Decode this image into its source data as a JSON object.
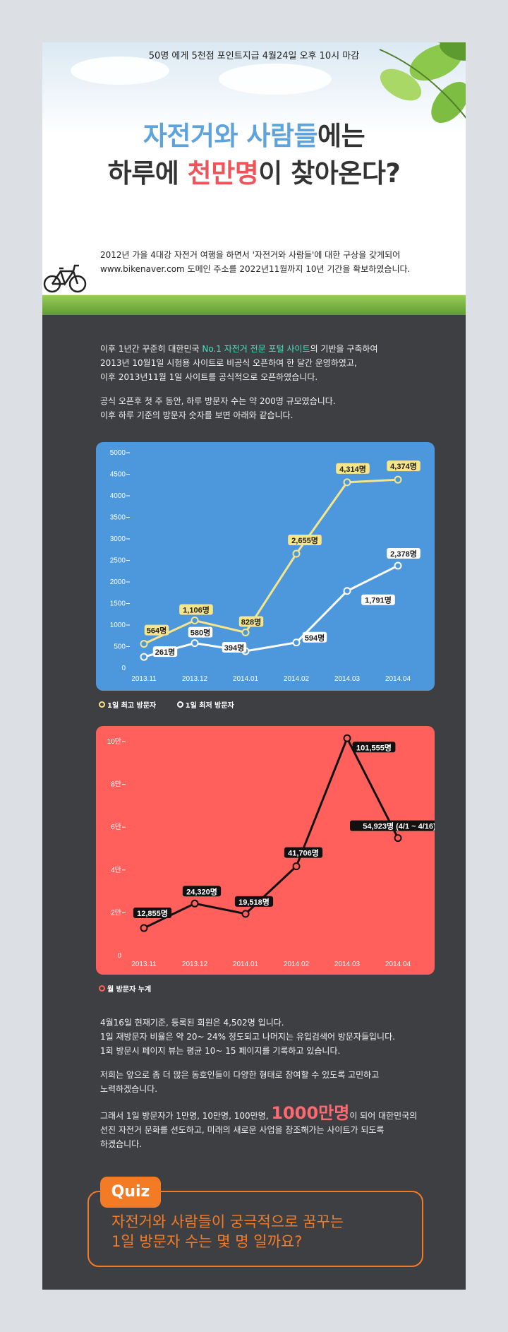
{
  "hero": {
    "promo": "50명 에게 5천점 포인트지급 4월24일 오후 10시 마감",
    "title_line1_a": "자전거와 사람들",
    "title_line1_b": "에는",
    "title_line2_a": "하루에 ",
    "title_line2_b": "천만명",
    "title_line2_c": "이 찾아온다?",
    "intro": [
      "2012년 가을  4대강 자전거 여행을 하면서 '자전거와 사람들'에 대한 구상을 갖게되어",
      "www.bikenaver.com 도메인 주소를  2022년11월까지 10년 기간을 확보하였습니다."
    ]
  },
  "text1": {
    "l1_a": "이후 1년간 꾸준히 대한민국 ",
    "l1_b": "No.1 자전거 전문 포털 사이트",
    "l1_c": "의 기반을 구축하여",
    "l2": "2013년 10월1일 시험용 사이트로 비공식 오픈하여 한 달간 운영하였고,",
    "l3": "이후 2013년11월 1일 사이트를 공식적으로 오픈하였습니다.",
    "l4": "공식 오픈후 첫 주 동안, 하루 방문자 수는 약 200명 규모였습니다.",
    "l5": "이후 하루 기준의 방문자 숫자를 보면 아래와 같습니다."
  },
  "legend1": {
    "max": "1일 최고 방문자",
    "min": "1일 최저 방문자"
  },
  "legend2": {
    "monthly": "월 방문자 누계"
  },
  "text2": {
    "l1": "4월16일 현재기준,  등록된 회원은 4,502명 입니다.",
    "l2": "1일 재방문자 비율은 약 20~ 24% 정도되고 나머지는 유입검색어 방문자들입니다.",
    "l3": "1회 방문시  페이지 뷰는 평균 10~ 15 페이지를 기록하고 있습니다.",
    "l4": " 저희는 앞으로 좀 더 많은 동호인들이 다양한 형태로 참여할 수 있도록 고민하고",
    "l5": "노력하겠습니다.",
    "l6_a": "그래서 1일 방문자가 1만명, 10만명, 100만명, ",
    "l6_b": "1000만명",
    "l6_c": "이 되어 대한민국의",
    "l7": "선진 자전거 문화를 선도하고, 미래의 새로운 사업을 창조해가는 사이트가 되도록",
    "l8": "하겠습니다."
  },
  "quiz": {
    "tag": "Quiz",
    "q1": "자전거와 사람들이 궁극적으로 꿈꾸는",
    "q2": "1일 방문자 수는 몇 명 일까요?"
  },
  "colors": {
    "chart1_bg": "#4d98dd",
    "chart2_bg": "#ff605c",
    "accent_orange": "#f47b26",
    "max_line": "#f7e58a",
    "min_line": "#ffffff",
    "monthly_line": "#111111"
  },
  "chart_data": [
    {
      "type": "line",
      "categories": [
        "2013.11",
        "2013.12",
        "2014.01",
        "2014.02",
        "2014.03",
        "2014.04"
      ],
      "ylim": [
        0,
        5000
      ],
      "yticks": [
        "5000",
        "4500",
        "4000",
        "3500",
        "3000",
        "2500",
        "2000",
        "1500",
        "1000",
        "500",
        "0"
      ],
      "yticks_values": [
        5000,
        4500,
        4000,
        3500,
        3000,
        2500,
        2000,
        1500,
        1000,
        500,
        0
      ],
      "series": [
        {
          "name": "1일 최고 방문자",
          "values": [
            564,
            1106,
            828,
            2655,
            4314,
            4374
          ],
          "labels": [
            "564명",
            "1,106명",
            "828명",
            "2,655명",
            "4,314명",
            "4,374명"
          ]
        },
        {
          "name": "1일 최저 방문자",
          "values": [
            261,
            580,
            394,
            594,
            1791,
            2378
          ],
          "labels": [
            "261명",
            "580명",
            "394명",
            "594명",
            "1,791명",
            "2,378명"
          ]
        }
      ],
      "grid": false
    },
    {
      "type": "line",
      "categories": [
        "2013.11",
        "2013.12",
        "2014.01",
        "2014.02",
        "2014.03",
        "2014.04"
      ],
      "ylim": [
        0,
        100000
      ],
      "yticks": [
        "10만",
        "8만",
        "6만",
        "4만",
        "2만",
        "0"
      ],
      "yticks_values": [
        100000,
        80000,
        60000,
        40000,
        20000,
        0
      ],
      "series": [
        {
          "name": "월 방문자 누계",
          "values": [
            12855,
            24320,
            19518,
            41706,
            101555,
            54923
          ],
          "labels": [
            "12,855명",
            "24,320명",
            "19,518명",
            "41,706명",
            "101,555명",
            "54,923명 (4/1 ~ 4/16)"
          ]
        }
      ],
      "grid": false
    }
  ]
}
